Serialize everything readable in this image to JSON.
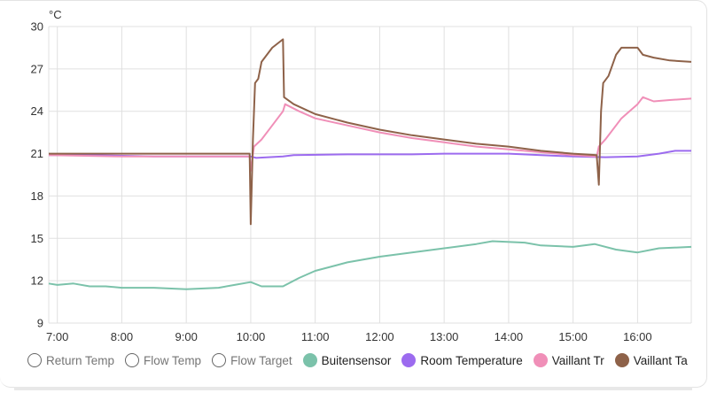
{
  "chart_data": {
    "type": "line",
    "title": "",
    "ylabel": "°C",
    "xlabel": "",
    "ylim": [
      9,
      30
    ],
    "yticks": [
      9,
      12,
      15,
      18,
      21,
      24,
      27,
      30
    ],
    "xticks": [
      "7:00",
      "8:00",
      "9:00",
      "10:00",
      "11:00",
      "12:00",
      "13:00",
      "14:00",
      "15:00",
      "16:00"
    ],
    "xrange": [
      "6:52",
      "16:50"
    ],
    "grid": true,
    "legend_position": "bottom",
    "series": [
      {
        "name": "Return Temp",
        "color": "#9e9e9e",
        "visible": false,
        "points": []
      },
      {
        "name": "Flow Temp",
        "color": "#9e9e9e",
        "visible": false,
        "points": []
      },
      {
        "name": "Flow Target",
        "color": "#9e9e9e",
        "visible": false,
        "points": []
      },
      {
        "name": "Buitensensor",
        "color": "#7bc2aa",
        "visible": true,
        "points": [
          [
            "6:52",
            11.8
          ],
          [
            "7:00",
            11.7
          ],
          [
            "7:15",
            11.8
          ],
          [
            "7:30",
            11.6
          ],
          [
            "7:45",
            11.6
          ],
          [
            "8:00",
            11.5
          ],
          [
            "8:30",
            11.5
          ],
          [
            "9:00",
            11.4
          ],
          [
            "9:30",
            11.5
          ],
          [
            "9:45",
            11.7
          ],
          [
            "10:00",
            11.9
          ],
          [
            "10:10",
            11.6
          ],
          [
            "10:30",
            11.6
          ],
          [
            "10:45",
            12.2
          ],
          [
            "11:00",
            12.7
          ],
          [
            "11:30",
            13.3
          ],
          [
            "12:00",
            13.7
          ],
          [
            "12:30",
            14.0
          ],
          [
            "13:00",
            14.3
          ],
          [
            "13:30",
            14.6
          ],
          [
            "13:45",
            14.8
          ],
          [
            "14:15",
            14.7
          ],
          [
            "14:30",
            14.5
          ],
          [
            "15:00",
            14.4
          ],
          [
            "15:20",
            14.6
          ],
          [
            "15:40",
            14.2
          ],
          [
            "16:00",
            14.0
          ],
          [
            "16:20",
            14.3
          ],
          [
            "16:50",
            14.4
          ]
        ]
      },
      {
        "name": "Room Temperature",
        "color": "#9c6bef",
        "visible": true,
        "points": [
          [
            "6:52",
            20.9
          ],
          [
            "7:30",
            20.9
          ],
          [
            "8:30",
            20.8
          ],
          [
            "9:30",
            20.8
          ],
          [
            "10:00",
            20.8
          ],
          [
            "10:05",
            20.7
          ],
          [
            "10:30",
            20.8
          ],
          [
            "10:40",
            20.9
          ],
          [
            "11:30",
            20.95
          ],
          [
            "12:30",
            20.95
          ],
          [
            "13:00",
            21.0
          ],
          [
            "14:00",
            21.0
          ],
          [
            "14:30",
            20.9
          ],
          [
            "15:00",
            20.8
          ],
          [
            "15:30",
            20.75
          ],
          [
            "16:00",
            20.8
          ],
          [
            "16:20",
            21.0
          ],
          [
            "16:35",
            21.2
          ],
          [
            "16:50",
            21.2
          ]
        ]
      },
      {
        "name": "Vaillant Tr",
        "color": "#f08fb8",
        "visible": true,
        "points": [
          [
            "6:52",
            20.9
          ],
          [
            "8:00",
            20.8
          ],
          [
            "9:00",
            20.8
          ],
          [
            "9:59",
            20.8
          ],
          [
            "10:00",
            19.8
          ],
          [
            "10:03",
            21.5
          ],
          [
            "10:10",
            22.0
          ],
          [
            "10:20",
            23.0
          ],
          [
            "10:30",
            24.0
          ],
          [
            "10:32",
            24.5
          ],
          [
            "10:45",
            24.0
          ],
          [
            "11:00",
            23.5
          ],
          [
            "11:30",
            23.0
          ],
          [
            "12:00",
            22.5
          ],
          [
            "12:30",
            22.1
          ],
          [
            "13:00",
            21.8
          ],
          [
            "13:30",
            21.5
          ],
          [
            "14:00",
            21.3
          ],
          [
            "14:30",
            21.1
          ],
          [
            "15:00",
            20.9
          ],
          [
            "15:22",
            20.8
          ],
          [
            "15:24",
            21.5
          ],
          [
            "15:30",
            22.0
          ],
          [
            "15:45",
            23.5
          ],
          [
            "16:00",
            24.5
          ],
          [
            "16:05",
            25.0
          ],
          [
            "16:15",
            24.7
          ],
          [
            "16:30",
            24.8
          ],
          [
            "16:50",
            24.9
          ]
        ]
      },
      {
        "name": "Vaillant Ta",
        "color": "#8e6249",
        "visible": true,
        "points": [
          [
            "6:52",
            21.0
          ],
          [
            "8:00",
            21.0
          ],
          [
            "9:00",
            21.0
          ],
          [
            "9:59",
            21.0
          ],
          [
            "10:00",
            16.0
          ],
          [
            "10:02",
            22.0
          ],
          [
            "10:04",
            26.0
          ],
          [
            "10:07",
            26.3
          ],
          [
            "10:10",
            27.5
          ],
          [
            "10:20",
            28.5
          ],
          [
            "10:30",
            29.1
          ],
          [
            "10:31",
            25.0
          ],
          [
            "10:40",
            24.5
          ],
          [
            "11:00",
            23.8
          ],
          [
            "11:30",
            23.2
          ],
          [
            "12:00",
            22.7
          ],
          [
            "12:30",
            22.3
          ],
          [
            "13:00",
            22.0
          ],
          [
            "13:30",
            21.7
          ],
          [
            "14:00",
            21.5
          ],
          [
            "14:30",
            21.2
          ],
          [
            "15:00",
            21.0
          ],
          [
            "15:22",
            20.9
          ],
          [
            "15:24",
            18.8
          ],
          [
            "15:26",
            24.0
          ],
          [
            "15:28",
            26.0
          ],
          [
            "15:33",
            26.5
          ],
          [
            "15:40",
            28.0
          ],
          [
            "15:45",
            28.5
          ],
          [
            "16:00",
            28.5
          ],
          [
            "16:05",
            28.0
          ],
          [
            "16:15",
            27.8
          ],
          [
            "16:30",
            27.6
          ],
          [
            "16:50",
            27.5
          ]
        ]
      }
    ]
  },
  "axis": {
    "unit": "°C",
    "y_labels": [
      "30",
      "27",
      "24",
      "21",
      "18",
      "15",
      "12",
      "9"
    ],
    "x_labels": [
      "7:00",
      "8:00",
      "9:00",
      "10:00",
      "11:00",
      "12:00",
      "13:00",
      "14:00",
      "15:00",
      "16:00"
    ]
  },
  "legend": [
    {
      "label": "Return Temp",
      "color": "#9e9e9e",
      "active": false
    },
    {
      "label": "Flow Temp",
      "color": "#9e9e9e",
      "active": false
    },
    {
      "label": "Flow Target",
      "color": "#9e9e9e",
      "active": false
    },
    {
      "label": "Buitensensor",
      "color": "#7bc2aa",
      "active": true
    },
    {
      "label": "Room Temperature",
      "color": "#9c6bef",
      "active": true
    },
    {
      "label": "Vaillant Tr",
      "color": "#f08fb8",
      "active": true
    },
    {
      "label": "Vaillant Ta",
      "color": "#8e6249",
      "active": true
    }
  ]
}
